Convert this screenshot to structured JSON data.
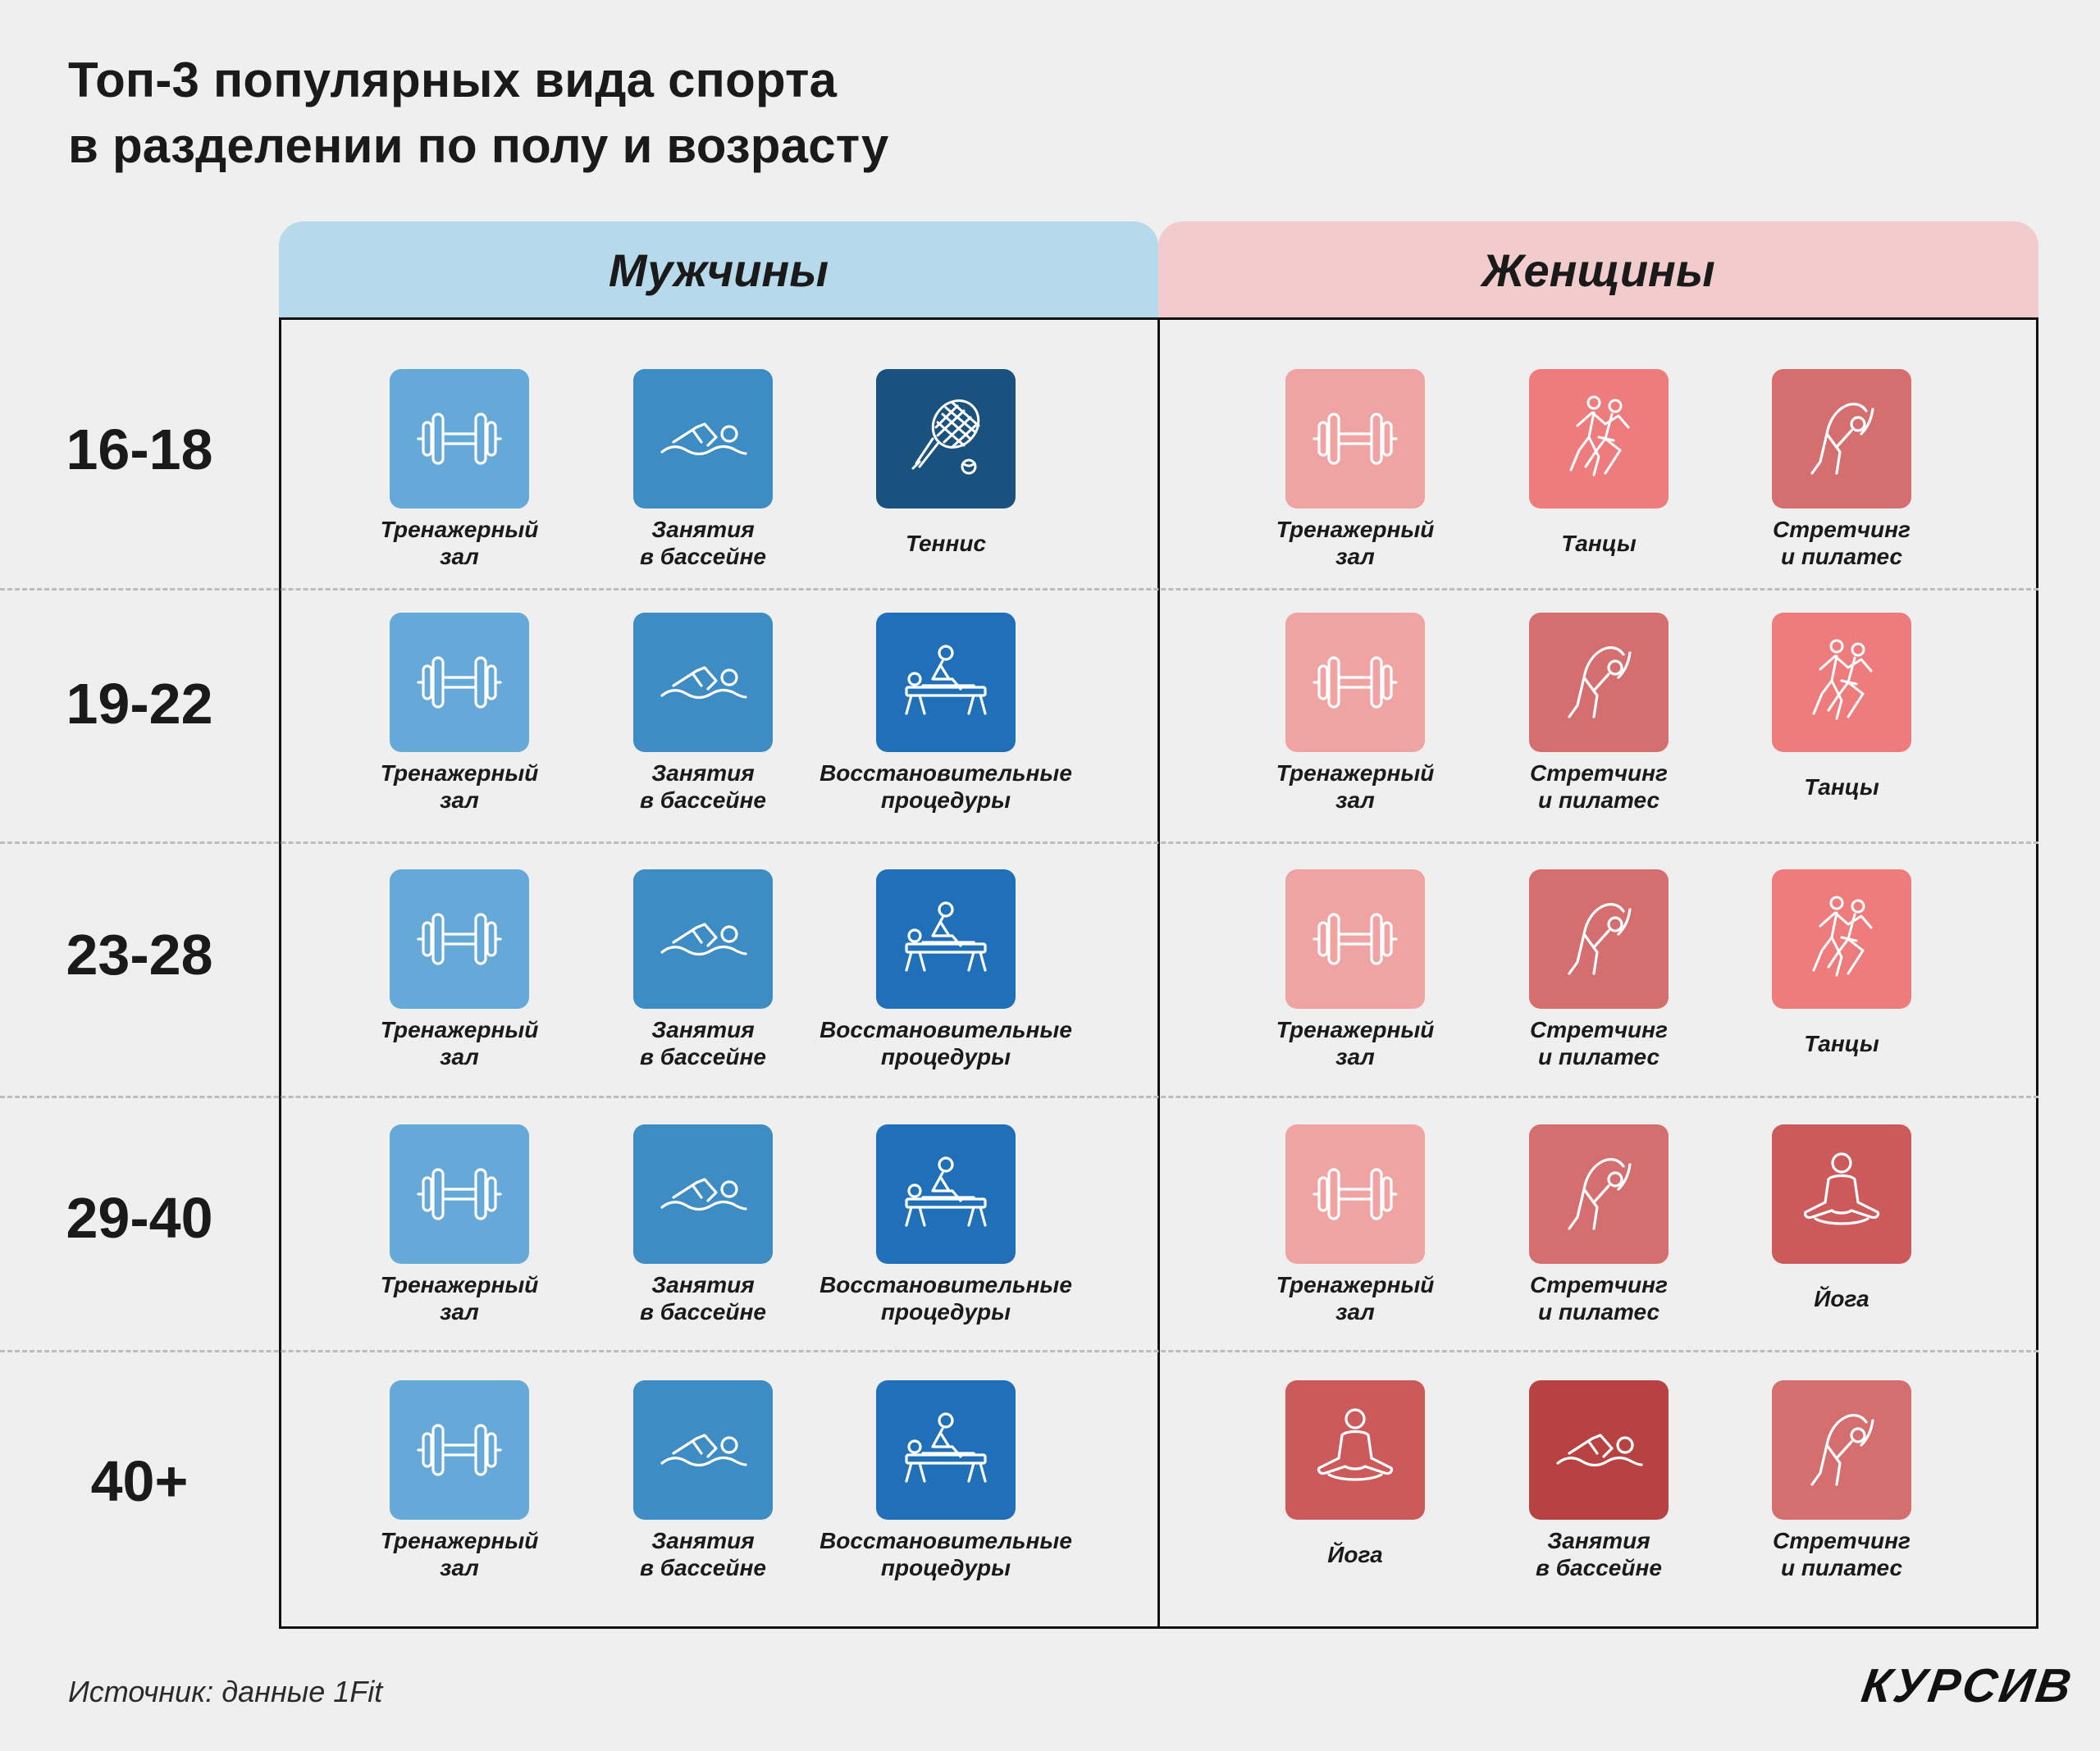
{
  "title": {
    "line1": "Топ-3 популярных вида спорта",
    "line2": "в разделении по полу и возрасту"
  },
  "columns": {
    "men": "Мужчины",
    "women": "Женщины"
  },
  "colors": {
    "men_light": "#64a9d8",
    "men_mid": "#3d8cc3",
    "men_dark": "#1f70b8",
    "men_navy": "#1a527f",
    "women_light": "#efa3a3",
    "women_coral": "#ee7c7c",
    "women_rose": "#d56e6e",
    "women_red": "#cd5a5a",
    "women_deep": "#b84242"
  },
  "rows": [
    {
      "age": "16-18",
      "men": [
        {
          "lines": [
            "Тренажерный",
            "зал"
          ],
          "icon": "dumbbell-icon",
          "color": "#64a9d8"
        },
        {
          "lines": [
            "Занятия",
            "в бассейне"
          ],
          "icon": "swimmer-icon",
          "color": "#3d8cc3"
        },
        {
          "lines": [
            "Теннис"
          ],
          "icon": "tennis-racket-icon",
          "color": "#1a527f"
        }
      ],
      "women": [
        {
          "lines": [
            "Тренажерный",
            "зал"
          ],
          "icon": "dumbbell-icon",
          "color": "#efa3a3"
        },
        {
          "lines": [
            "Танцы"
          ],
          "icon": "dancers-icon",
          "color": "#ee7c7c"
        },
        {
          "lines": [
            "Стретчинг",
            "и пилатес"
          ],
          "icon": "stretching-icon",
          "color": "#d56e6e"
        }
      ]
    },
    {
      "age": "19-22",
      "men": [
        {
          "lines": [
            "Тренажерный",
            "зал"
          ],
          "icon": "dumbbell-icon",
          "color": "#64a9d8"
        },
        {
          "lines": [
            "Занятия",
            "в бассейне"
          ],
          "icon": "swimmer-icon",
          "color": "#3d8cc3"
        },
        {
          "lines": [
            "Восстановительные",
            "процедуры"
          ],
          "icon": "massage-icon",
          "color": "#1f70b8"
        }
      ],
      "women": [
        {
          "lines": [
            "Тренажерный",
            "зал"
          ],
          "icon": "dumbbell-icon",
          "color": "#efa3a3"
        },
        {
          "lines": [
            "Стретчинг",
            "и пилатес"
          ],
          "icon": "stretching-icon",
          "color": "#d56e6e"
        },
        {
          "lines": [
            "Танцы"
          ],
          "icon": "dancers-icon",
          "color": "#ee7c7c"
        }
      ]
    },
    {
      "age": "23-28",
      "men": [
        {
          "lines": [
            "Тренажерный",
            "зал"
          ],
          "icon": "dumbbell-icon",
          "color": "#64a9d8"
        },
        {
          "lines": [
            "Занятия",
            "в бассейне"
          ],
          "icon": "swimmer-icon",
          "color": "#3d8cc3"
        },
        {
          "lines": [
            "Восстановительные",
            "процедуры"
          ],
          "icon": "massage-icon",
          "color": "#1f70b8"
        }
      ],
      "women": [
        {
          "lines": [
            "Тренажерный",
            "зал"
          ],
          "icon": "dumbbell-icon",
          "color": "#efa3a3"
        },
        {
          "lines": [
            "Стретчинг",
            "и пилатес"
          ],
          "icon": "stretching-icon",
          "color": "#d56e6e"
        },
        {
          "lines": [
            "Танцы"
          ],
          "icon": "dancers-icon",
          "color": "#ee7c7c"
        }
      ]
    },
    {
      "age": "29-40",
      "men": [
        {
          "lines": [
            "Тренажерный",
            "зал"
          ],
          "icon": "dumbbell-icon",
          "color": "#64a9d8"
        },
        {
          "lines": [
            "Занятия",
            "в бассейне"
          ],
          "icon": "swimmer-icon",
          "color": "#3d8cc3"
        },
        {
          "lines": [
            "Восстановительные",
            "процедуры"
          ],
          "icon": "massage-icon",
          "color": "#1f70b8"
        }
      ],
      "women": [
        {
          "lines": [
            "Тренажерный",
            "зал"
          ],
          "icon": "dumbbell-icon",
          "color": "#efa3a3"
        },
        {
          "lines": [
            "Стретчинг",
            "и пилатес"
          ],
          "icon": "stretching-icon",
          "color": "#d56e6e"
        },
        {
          "lines": [
            "Йога"
          ],
          "icon": "yoga-icon",
          "color": "#cd5a5a"
        }
      ]
    },
    {
      "age": "40+",
      "men": [
        {
          "lines": [
            "Тренажерный",
            "зал"
          ],
          "icon": "dumbbell-icon",
          "color": "#64a9d8"
        },
        {
          "lines": [
            "Занятия",
            "в бассейне"
          ],
          "icon": "swimmer-icon",
          "color": "#3d8cc3"
        },
        {
          "lines": [
            "Восстановительные",
            "процедуры"
          ],
          "icon": "massage-icon",
          "color": "#1f70b8"
        }
      ],
      "women": [
        {
          "lines": [
            "Йога"
          ],
          "icon": "yoga-icon",
          "color": "#cd5a5a"
        },
        {
          "lines": [
            "Занятия",
            "в бассейне"
          ],
          "icon": "swimmer-icon",
          "color": "#b84242"
        },
        {
          "lines": [
            "Стретчинг",
            "и пилатес"
          ],
          "icon": "stretching-icon",
          "color": "#d56e6e"
        }
      ]
    }
  ],
  "source": "Источник: данные 1Fit",
  "logo": "КУРСИВ"
}
